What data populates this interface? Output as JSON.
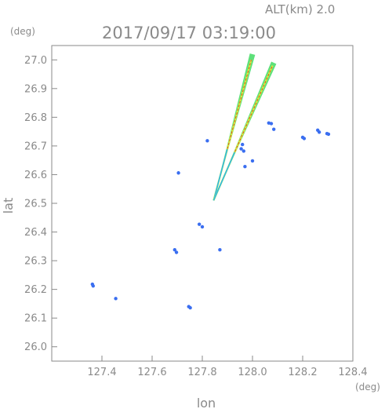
{
  "header": {
    "altitude_label": "ALT(km)  2.0",
    "timestamp": "2017/09/17 03:19:00"
  },
  "chart_data": {
    "type": "scatter",
    "title": "2017/09/17 03:19:00",
    "xlabel": "lon",
    "ylabel": "lat",
    "x_unit": "(deg)",
    "y_unit": "(deg)",
    "xlim": [
      127.2,
      128.4
    ],
    "ylim": [
      25.95,
      27.05
    ],
    "x_ticks": [
      "127.4",
      "127.6",
      "127.8",
      "128.0",
      "128.2",
      "128.4"
    ],
    "y_ticks": [
      "26.0",
      "26.1",
      "26.2",
      "26.3",
      "26.4",
      "26.5",
      "26.6",
      "26.7",
      "26.8",
      "26.9",
      "27.0"
    ],
    "grid": false,
    "colors": {
      "axis": "#8a8a8a",
      "beam_green": "#5ee07a",
      "beam_yellow": "#d8f040",
      "beam_red": "#e04020",
      "echo_blue": "#3a6ef0",
      "echo_cyan": "#2ab8e8"
    },
    "beams": [
      {
        "name": "beam-north",
        "from": [
          127.845,
          26.51
        ],
        "to": [
          128.0,
          27.02
        ],
        "core_to": [
          127.995,
          27.0
        ]
      },
      {
        "name": "beam-northeast",
        "from": [
          127.845,
          26.51
        ],
        "to": [
          128.085,
          26.99
        ],
        "core_to": [
          128.08,
          26.98
        ]
      }
    ],
    "echoes": [
      {
        "lon": 127.362,
        "lat": 26.218
      },
      {
        "lon": 127.365,
        "lat": 26.212
      },
      {
        "lon": 127.455,
        "lat": 26.168
      },
      {
        "lon": 127.69,
        "lat": 26.338
      },
      {
        "lon": 127.697,
        "lat": 26.329
      },
      {
        "lon": 127.746,
        "lat": 26.14
      },
      {
        "lon": 127.752,
        "lat": 26.136
      },
      {
        "lon": 127.788,
        "lat": 26.427
      },
      {
        "lon": 127.8,
        "lat": 26.418
      },
      {
        "lon": 127.87,
        "lat": 26.338
      },
      {
        "lon": 127.705,
        "lat": 26.606
      },
      {
        "lon": 127.82,
        "lat": 26.718
      },
      {
        "lon": 127.96,
        "lat": 26.705
      },
      {
        "lon": 127.955,
        "lat": 26.69
      },
      {
        "lon": 127.965,
        "lat": 26.682
      },
      {
        "lon": 127.97,
        "lat": 26.628
      },
      {
        "lon": 128.0,
        "lat": 26.648
      },
      {
        "lon": 128.065,
        "lat": 26.78
      },
      {
        "lon": 128.075,
        "lat": 26.778
      },
      {
        "lon": 128.085,
        "lat": 26.758
      },
      {
        "lon": 128.2,
        "lat": 26.73
      },
      {
        "lon": 128.206,
        "lat": 26.726
      },
      {
        "lon": 128.26,
        "lat": 26.755
      },
      {
        "lon": 128.266,
        "lat": 26.748
      },
      {
        "lon": 128.297,
        "lat": 26.743
      },
      {
        "lon": 128.303,
        "lat": 26.741
      }
    ]
  }
}
